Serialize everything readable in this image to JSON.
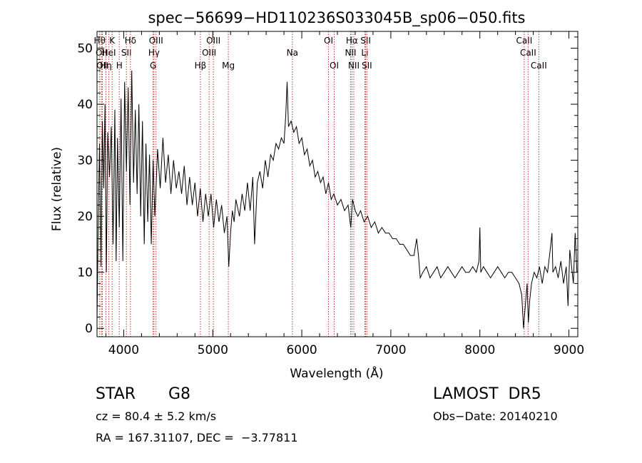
{
  "chart_data": {
    "type": "line",
    "title": "spec−56699−HD110236S033045B_sp06−050.fits",
    "xlabel": "Wavelength (Å)",
    "ylabel": "Flux (relative)",
    "xlim": [
      3700,
      9100
    ],
    "ylim": [
      -1.5,
      53
    ],
    "xticks": [
      {
        "v": 4000,
        "label": "4000"
      },
      {
        "v": 5000,
        "label": "5000"
      },
      {
        "v": 6000,
        "label": "6000"
      },
      {
        "v": 7000,
        "label": "7000"
      },
      {
        "v": 8000,
        "label": "8000"
      },
      {
        "v": 9000,
        "label": "9000"
      }
    ],
    "yticks": [
      {
        "v": 0,
        "label": "0"
      },
      {
        "v": 10,
        "label": "10"
      },
      {
        "v": 20,
        "label": "20"
      },
      {
        "v": 30,
        "label": "30"
      },
      {
        "v": 40,
        "label": "40"
      },
      {
        "v": 50,
        "label": "50"
      }
    ],
    "line_color": "#000000",
    "marker_color": "#c0392b",
    "lines": [
      {
        "w": 3730,
        "label": "Hθ",
        "row": 0
      },
      {
        "w": 3750,
        "label": "OII",
        "row": 1
      },
      {
        "w": 3760,
        "label": "OII",
        "row": 2
      },
      {
        "w": 3800,
        "label": "Hη",
        "row": 2
      },
      {
        "w": 3833,
        "label": "HeI",
        "row": 1
      },
      {
        "w": 3870,
        "label": "K",
        "row": 0
      },
      {
        "w": 3950,
        "label": "H",
        "row": 2
      },
      {
        "w": 4030,
        "label": "SII",
        "row": 1
      },
      {
        "w": 4075,
        "label": "Hδ",
        "row": 0
      },
      {
        "w": 4330,
        "label": "G",
        "row": 2
      },
      {
        "w": 4340,
        "label": "Hγ",
        "row": 1
      },
      {
        "w": 4363,
        "label": "OIII",
        "row": 0
      },
      {
        "w": 4861,
        "label": "Hβ",
        "row": 2
      },
      {
        "w": 4959,
        "label": "OIII",
        "row": 1
      },
      {
        "w": 5007,
        "label": "OIII",
        "row": 0
      },
      {
        "w": 5175,
        "label": "Mg",
        "row": 2
      },
      {
        "w": 5894,
        "label": "Na",
        "row": 1
      },
      {
        "w": 6300,
        "label": "OI",
        "row": 0
      },
      {
        "w": 6364,
        "label": "OI",
        "row": 2
      },
      {
        "w": 6548,
        "label": "NII",
        "row": 1
      },
      {
        "w": 6563,
        "label": "Hα",
        "row": 0
      },
      {
        "w": 6584,
        "label": "NII",
        "row": 2
      },
      {
        "w": 6708,
        "label": "Li",
        "row": 1
      },
      {
        "w": 6717,
        "label": "SII",
        "row": 0
      },
      {
        "w": 6731,
        "label": "SII",
        "row": 2
      },
      {
        "w": 8498,
        "label": "CaII",
        "row": 0
      },
      {
        "w": 8542,
        "label": "CaII",
        "row": 1
      },
      {
        "w": 8662,
        "label": "CaII",
        "row": 2
      }
    ],
    "spectrum": [
      [
        3700,
        1
      ],
      [
        3712,
        17
      ],
      [
        3728,
        33
      ],
      [
        3745,
        11
      ],
      [
        3760,
        37
      ],
      [
        3775,
        25
      ],
      [
        3790,
        40
      ],
      [
        3805,
        10
      ],
      [
        3820,
        35
      ],
      [
        3840,
        27
      ],
      [
        3860,
        36
      ],
      [
        3880,
        15
      ],
      [
        3900,
        39
      ],
      [
        3915,
        12
      ],
      [
        3930,
        34
      ],
      [
        3950,
        18
      ],
      [
        3970,
        41
      ],
      [
        3990,
        12
      ],
      [
        4010,
        44
      ],
      [
        4030,
        28
      ],
      [
        4050,
        43
      ],
      [
        4070,
        22
      ],
      [
        4090,
        46
      ],
      [
        4110,
        26
      ],
      [
        4130,
        39
      ],
      [
        4150,
        24
      ],
      [
        4170,
        40
      ],
      [
        4190,
        20
      ],
      [
        4210,
        37
      ],
      [
        4230,
        15
      ],
      [
        4250,
        33
      ],
      [
        4270,
        19
      ],
      [
        4290,
        31
      ],
      [
        4310,
        15
      ],
      [
        4330,
        30
      ],
      [
        4350,
        20
      ],
      [
        4380,
        32
      ],
      [
        4410,
        25
      ],
      [
        4440,
        34
      ],
      [
        4470,
        26
      ],
      [
        4500,
        31
      ],
      [
        4530,
        24
      ],
      [
        4560,
        30
      ],
      [
        4590,
        25
      ],
      [
        4620,
        28
      ],
      [
        4650,
        24
      ],
      [
        4680,
        29
      ],
      [
        4710,
        22
      ],
      [
        4740,
        27
      ],
      [
        4770,
        22
      ],
      [
        4800,
        26
      ],
      [
        4830,
        20
      ],
      [
        4860,
        25
      ],
      [
        4890,
        19
      ],
      [
        4920,
        24
      ],
      [
        4950,
        20
      ],
      [
        4980,
        24
      ],
      [
        5010,
        18
      ],
      [
        5040,
        23
      ],
      [
        5070,
        19
      ],
      [
        5100,
        22
      ],
      [
        5130,
        17
      ],
      [
        5160,
        20
      ],
      [
        5180,
        11
      ],
      [
        5200,
        17
      ],
      [
        5220,
        21
      ],
      [
        5240,
        19
      ],
      [
        5260,
        23
      ],
      [
        5300,
        20
      ],
      [
        5330,
        24
      ],
      [
        5360,
        21
      ],
      [
        5390,
        26
      ],
      [
        5420,
        21
      ],
      [
        5450,
        27
      ],
      [
        5470,
        15
      ],
      [
        5500,
        26
      ],
      [
        5530,
        28
      ],
      [
        5560,
        25
      ],
      [
        5590,
        30
      ],
      [
        5620,
        27
      ],
      [
        5650,
        31
      ],
      [
        5680,
        30
      ],
      [
        5710,
        33
      ],
      [
        5740,
        32
      ],
      [
        5770,
        34
      ],
      [
        5800,
        33
      ],
      [
        5820,
        38
      ],
      [
        5835,
        44
      ],
      [
        5850,
        36
      ],
      [
        5880,
        37
      ],
      [
        5910,
        35
      ],
      [
        5940,
        36
      ],
      [
        5970,
        33
      ],
      [
        6000,
        34
      ],
      [
        6030,
        31
      ],
      [
        6060,
        32
      ],
      [
        6090,
        29
      ],
      [
        6120,
        30
      ],
      [
        6150,
        27
      ],
      [
        6180,
        28
      ],
      [
        6210,
        26
      ],
      [
        6240,
        27
      ],
      [
        6270,
        24
      ],
      [
        6300,
        26
      ],
      [
        6330,
        23
      ],
      [
        6360,
        24
      ],
      [
        6400,
        22
      ],
      [
        6440,
        23
      ],
      [
        6480,
        21
      ],
      [
        6520,
        22
      ],
      [
        6550,
        18
      ],
      [
        6570,
        23
      ],
      [
        6600,
        21
      ],
      [
        6630,
        20
      ],
      [
        6660,
        21
      ],
      [
        6700,
        19
      ],
      [
        6740,
        20
      ],
      [
        6780,
        18
      ],
      [
        6820,
        19
      ],
      [
        6860,
        17
      ],
      [
        6900,
        18
      ],
      [
        6940,
        17
      ],
      [
        6980,
        17
      ],
      [
        7020,
        16
      ],
      [
        7060,
        16
      ],
      [
        7100,
        15
      ],
      [
        7140,
        15
      ],
      [
        7180,
        14
      ],
      [
        7220,
        13
      ],
      [
        7260,
        13
      ],
      [
        7290,
        16
      ],
      [
        7310,
        13
      ],
      [
        7330,
        9
      ],
      [
        7360,
        10
      ],
      [
        7400,
        11
      ],
      [
        7440,
        9
      ],
      [
        7480,
        10
      ],
      [
        7520,
        11
      ],
      [
        7560,
        9
      ],
      [
        7600,
        10
      ],
      [
        7640,
        11
      ],
      [
        7680,
        10
      ],
      [
        7720,
        9
      ],
      [
        7760,
        10
      ],
      [
        7800,
        11
      ],
      [
        7840,
        10
      ],
      [
        7880,
        10
      ],
      [
        7920,
        11
      ],
      [
        7960,
        10
      ],
      [
        7990,
        12
      ],
      [
        8000,
        18
      ],
      [
        8010,
        10
      ],
      [
        8040,
        11
      ],
      [
        8080,
        10
      ],
      [
        8120,
        9
      ],
      [
        8160,
        10
      ],
      [
        8200,
        11
      ],
      [
        8240,
        10
      ],
      [
        8280,
        9
      ],
      [
        8320,
        10
      ],
      [
        8360,
        10
      ],
      [
        8400,
        9
      ],
      [
        8440,
        8
      ],
      [
        8470,
        6
      ],
      [
        8490,
        0
      ],
      [
        8510,
        4
      ],
      [
        8530,
        8
      ],
      [
        8545,
        1
      ],
      [
        8560,
        5
      ],
      [
        8580,
        8
      ],
      [
        8610,
        10
      ],
      [
        8640,
        9
      ],
      [
        8670,
        11
      ],
      [
        8700,
        8
      ],
      [
        8730,
        11
      ],
      [
        8760,
        10
      ],
      [
        8790,
        14
      ],
      [
        8810,
        17
      ],
      [
        8820,
        10
      ],
      [
        8850,
        11
      ],
      [
        8880,
        9
      ],
      [
        8910,
        12
      ],
      [
        8940,
        8
      ],
      [
        8970,
        11
      ],
      [
        8990,
        4
      ],
      [
        9010,
        14
      ],
      [
        9030,
        11
      ],
      [
        9050,
        8
      ],
      [
        9070,
        17
      ],
      [
        9090,
        10
      ]
    ]
  },
  "info": {
    "object_type": "STAR",
    "spectral_class": "G8",
    "survey": "LAMOST  DR5",
    "redshift": "cz = 80.4 ± 5.2 km/s",
    "obs_date": "Obs−Date: 20140210",
    "coords": "RA = 167.31107, DEC =  −3.77811"
  }
}
